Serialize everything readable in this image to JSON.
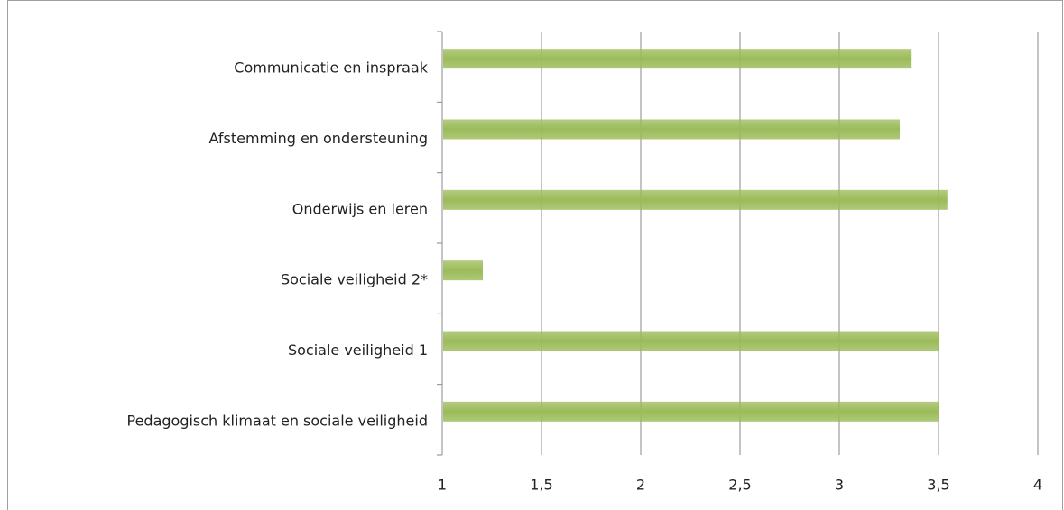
{
  "chart_data": {
    "type": "hbar",
    "categories": [
      "Communicatie en inspraak",
      "Afstemming en ondersteuning",
      "Onderwijs en leren",
      "Sociale veiligheid 2*",
      "Sociale veiligheid 1",
      "Pedagogisch klimaat en sociale veiligheid"
    ],
    "values": [
      3.36,
      3.3,
      3.54,
      1.2,
      3.5,
      3.5
    ],
    "color": "#9bbb59",
    "xlim": [
      1,
      4
    ],
    "xticks": [
      1,
      {
        "value": 1.5,
        "label": "1,5"
      },
      2,
      {
        "value": 2.5,
        "label": "2,5"
      },
      3,
      {
        "value": 3.5,
        "label": "3,5"
      },
      4
    ],
    "grid": true
  }
}
